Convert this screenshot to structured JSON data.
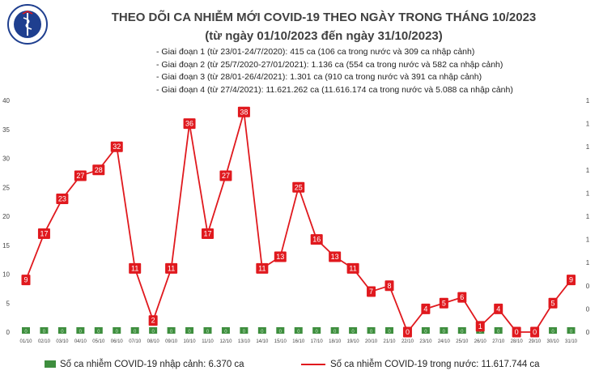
{
  "header": {
    "logo_text": "BỘ Y TẾ · MINISTRY OF HEALTH",
    "title": "THEO DÕI CA NHIỄM MỚI COVID-19 THEO NGÀY TRONG THÁNG 10/2023",
    "subtitle": "(từ ngày 01/10/2023 đến ngày 31/10/2023)"
  },
  "phases": [
    "- Giai đoạn 1 (từ 23/01-24/7/2020): 415 ca (106 ca trong nước và 309 ca nhập cảnh)",
    "- Giai đoạn 2 (từ 25/7/2020-27/01/2021): 1.136 ca (554 ca trong nước và 582 ca nhập cảnh)",
    "- Giai đoạn 3 (từ 28/01-26/4/2021): 1.301 ca (910 ca trong nước và 391 ca nhập cảnh)",
    "- Giai đoạn 4 (từ 27/4/2021): 11.621.262 ca (11.616.174 ca trong nước và 5.088 ca nhập cảnh)"
  ],
  "legend": {
    "imported": "Số ca nhiễm COVID-19 nhập cảnh: 6.370 ca",
    "domestic": "Số ca nhiễm COVID-19 trong nước: 11.617.744 ca"
  },
  "chart_data": {
    "type": "line",
    "categories": [
      "01/10",
      "02/10",
      "03/10",
      "04/10",
      "05/10",
      "06/10",
      "07/10",
      "08/10",
      "09/10",
      "10/10",
      "11/10",
      "12/10",
      "13/10",
      "14/10",
      "15/10",
      "16/10",
      "17/10",
      "18/10",
      "19/10",
      "20/10",
      "21/10",
      "22/10",
      "23/10",
      "24/10",
      "25/10",
      "26/10",
      "27/10",
      "28/10",
      "29/10",
      "30/10",
      "31/10"
    ],
    "series": [
      {
        "name": "Số ca nhiễm COVID-19 trong nước: 11.617.744 ca",
        "kind": "line",
        "axis": "left",
        "color": "#e0191e",
        "values": [
          9,
          17,
          23,
          27,
          28,
          32,
          11,
          2,
          11,
          36,
          17,
          27,
          38,
          11,
          13,
          25,
          16,
          13,
          11,
          7,
          8,
          0,
          4,
          5,
          6,
          1,
          4,
          0,
          0,
          5,
          9
        ],
        "labels": [
          "9",
          "17",
          "23",
          "27",
          "28",
          "32",
          "11",
          "2",
          "11",
          "36",
          "17",
          "27",
          "38",
          "11",
          "13",
          "25",
          "16",
          "13",
          "11",
          "7",
          "8",
          "0",
          "4",
          "5",
          "6",
          "1",
          "4",
          "0",
          "0",
          "5",
          "9"
        ]
      },
      {
        "name": "Số ca nhiễm COVID-19 nhập cảnh: 6.370 ca",
        "kind": "bar",
        "axis": "right",
        "color": "#3e8e3e",
        "values": [
          0,
          0,
          0,
          0,
          0,
          0,
          0,
          0,
          0,
          0,
          0,
          0,
          0,
          0,
          0,
          0,
          0,
          0,
          0,
          0,
          0,
          0,
          0,
          0,
          0,
          0,
          0,
          0,
          0,
          0,
          0
        ],
        "labels": [
          "0",
          "0",
          "0",
          "0",
          "0",
          "0",
          "0",
          "0",
          "0",
          "0",
          "0",
          "0",
          "0",
          "0",
          "0",
          "0",
          "0",
          "0",
          "0",
          "0",
          "0",
          "0",
          "0",
          "0",
          "0",
          "0",
          "0",
          "0",
          "0",
          "0",
          "0"
        ]
      }
    ],
    "y_left": {
      "ylim": [
        0,
        40
      ],
      "ticks": [
        "0",
        "5",
        "10",
        "15",
        "20",
        "25",
        "30",
        "35",
        "40"
      ]
    },
    "y_right": {
      "ticks": [
        "1",
        "1",
        "1",
        "1",
        "1",
        "1",
        "1",
        "1",
        "0",
        "0",
        "0"
      ]
    },
    "grid": false,
    "legend_position": "bottom"
  }
}
